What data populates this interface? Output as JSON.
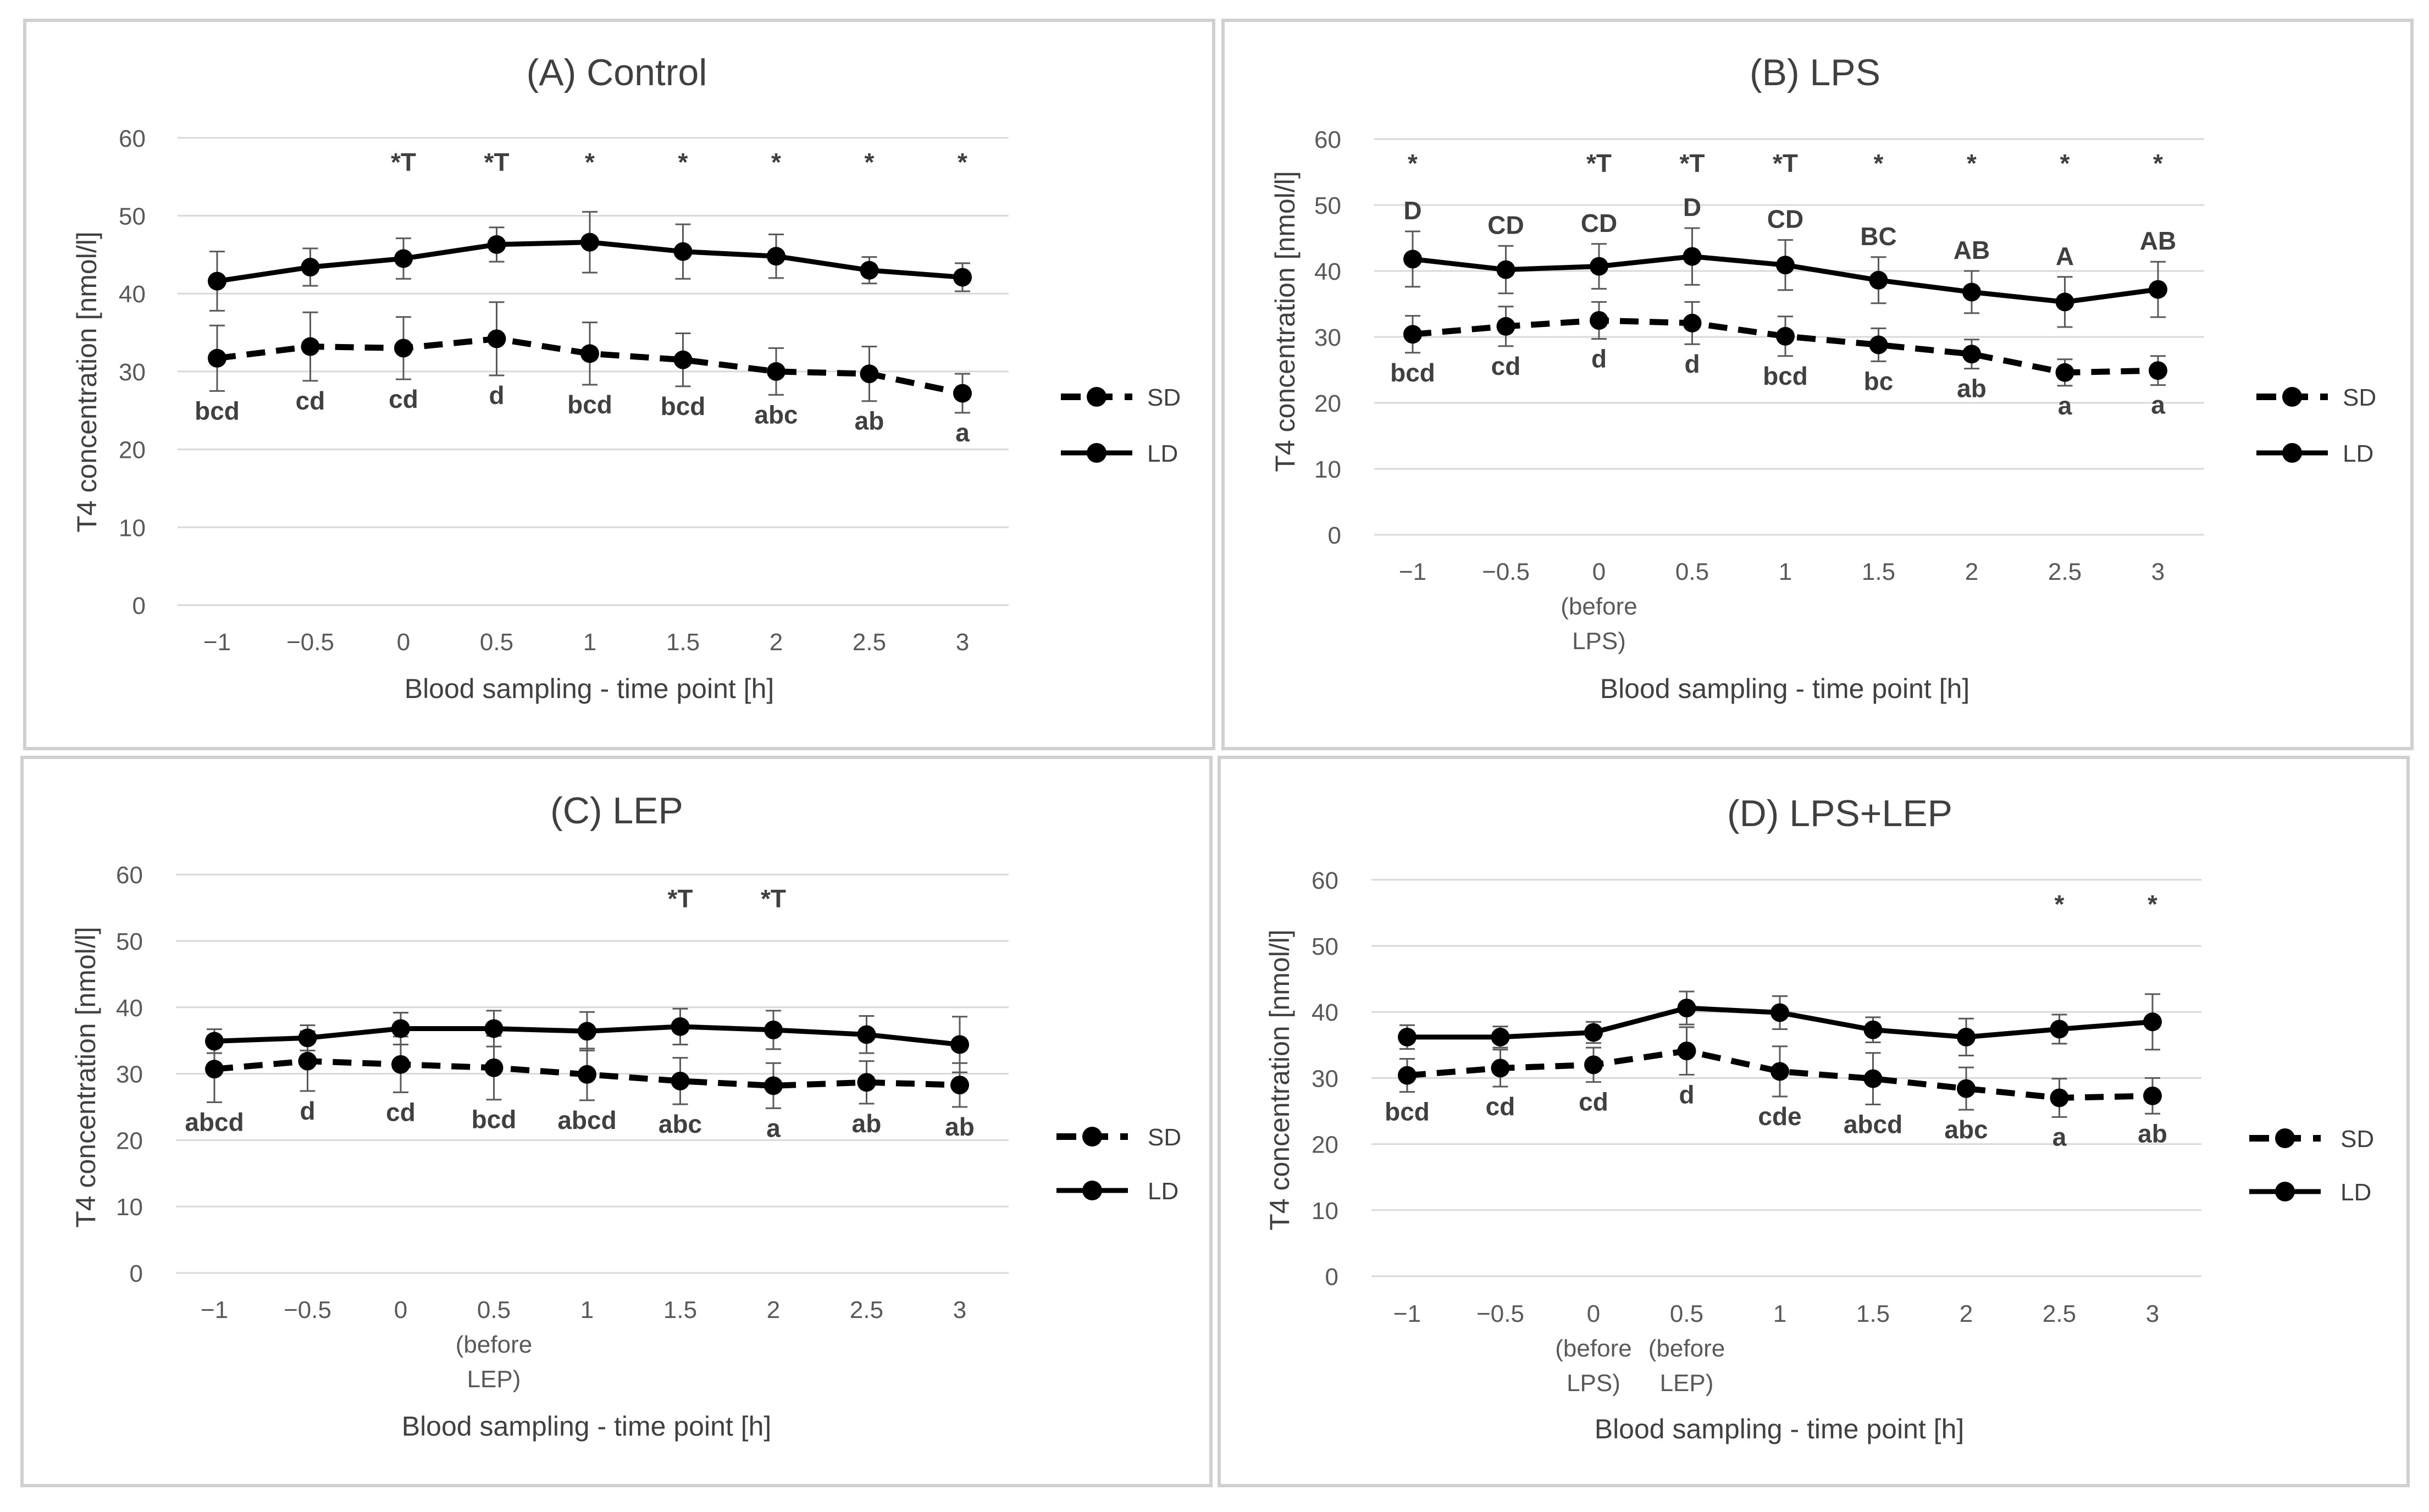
{
  "chart_data": [
    {
      "type": "line",
      "title": "(A) Control",
      "xlabel": "Blood sampling - time point [h]",
      "ylabel": "T4 concentration [nmol/l]",
      "ylim": [
        0,
        60
      ],
      "yticks": [
        "0",
        "10",
        "20",
        "30",
        "40",
        "50",
        "60"
      ],
      "categories": [
        "−1",
        "−0.5",
        "0",
        "0.5",
        "1",
        "1.5",
        "2",
        "2.5",
        "3"
      ],
      "category_notes": [],
      "legend": [
        "SD",
        "LD"
      ],
      "series": [
        {
          "name": "SD",
          "style": "dashed",
          "values": [
            31.7,
            33.2,
            33.0,
            34.2,
            32.3,
            31.5,
            30.0,
            29.7,
            27.2
          ],
          "errors": [
            4.2,
            4.4,
            4.0,
            4.7,
            4.0,
            3.4,
            3.0,
            3.5,
            2.5
          ]
        },
        {
          "name": "LD",
          "style": "solid",
          "values": [
            41.6,
            43.4,
            44.5,
            46.3,
            46.6,
            45.4,
            44.8,
            43.0,
            42.1
          ],
          "errors": [
            3.8,
            2.4,
            2.6,
            2.2,
            3.9,
            3.5,
            2.8,
            1.7,
            1.8
          ]
        }
      ],
      "top_labels": [
        "",
        "",
        "*T",
        "*T",
        "*",
        "*",
        "*",
        "*",
        "*"
      ],
      "ld_labels": [],
      "sd_labels": [
        "bcd",
        "cd",
        "cd",
        "d",
        "bcd",
        "bcd",
        "abc",
        "ab",
        "a"
      ]
    },
    {
      "type": "line",
      "title": "(B) LPS",
      "xlabel": "Blood sampling - time point [h]",
      "ylabel": "T4 concentration [nmol/l]",
      "ylim": [
        0,
        60
      ],
      "yticks": [
        "0",
        "10",
        "20",
        "30",
        "40",
        "50",
        "60"
      ],
      "categories": [
        "−1",
        "−0.5",
        "0",
        "0.5",
        "1",
        "1.5",
        "2",
        "2.5",
        "3"
      ],
      "category_notes": [
        {
          "index": 2,
          "lines": [
            "(before",
            "LPS)"
          ]
        }
      ],
      "legend": [
        "SD",
        "LD"
      ],
      "series": [
        {
          "name": "SD",
          "style": "dashed",
          "values": [
            30.4,
            31.6,
            32.5,
            32.1,
            30.1,
            28.8,
            27.4,
            24.6,
            24.9
          ],
          "errors": [
            2.8,
            3.0,
            2.8,
            3.2,
            3.0,
            2.5,
            2.2,
            2.0,
            2.2
          ]
        },
        {
          "name": "LD",
          "style": "solid",
          "values": [
            41.8,
            40.2,
            40.7,
            42.2,
            40.9,
            38.6,
            36.8,
            35.3,
            37.2
          ],
          "errors": [
            4.2,
            3.6,
            3.4,
            4.3,
            3.8,
            3.5,
            3.2,
            3.8,
            4.2
          ]
        }
      ],
      "top_labels": [
        "*",
        "",
        "*T",
        "*T",
        "*T",
        "*",
        "*",
        "*",
        "*"
      ],
      "ld_labels": [
        "D",
        "CD",
        "CD",
        "D",
        "CD",
        "BC",
        "AB",
        "A",
        "AB"
      ],
      "sd_labels": [
        "bcd",
        "cd",
        "d",
        "d",
        "bcd",
        "bc",
        "ab",
        "a",
        "a"
      ]
    },
    {
      "type": "line",
      "title": "(C) LEP",
      "xlabel": "Blood sampling - time point [h]",
      "ylabel": "T4 concentration [nmol/l]",
      "ylim": [
        0,
        60
      ],
      "yticks": [
        "0",
        "10",
        "20",
        "30",
        "40",
        "50",
        "60"
      ],
      "categories": [
        "−1",
        "−0.5",
        "0",
        "0.5",
        "1",
        "1.5",
        "2",
        "2.5",
        "3"
      ],
      "category_notes": [
        {
          "index": 3,
          "lines": [
            "(before",
            "LEP)"
          ]
        }
      ],
      "legend": [
        "SD",
        "LD"
      ],
      "series": [
        {
          "name": "SD",
          "style": "dashed",
          "values": [
            30.7,
            31.9,
            31.4,
            30.9,
            29.9,
            28.9,
            28.2,
            28.7,
            28.3
          ],
          "errors": [
            5.0,
            4.5,
            4.2,
            4.8,
            3.9,
            3.5,
            3.4,
            3.2,
            3.3
          ]
        },
        {
          "name": "LD",
          "style": "solid",
          "values": [
            34.9,
            35.4,
            36.8,
            36.8,
            36.4,
            37.1,
            36.6,
            35.9,
            34.4
          ],
          "errors": [
            1.8,
            1.9,
            2.4,
            2.7,
            2.9,
            2.7,
            2.9,
            2.8,
            4.2
          ]
        }
      ],
      "top_labels": [
        "",
        "",
        "",
        "",
        "",
        "*T",
        "*T",
        "",
        ""
      ],
      "ld_labels": [],
      "sd_labels": [
        "abcd",
        "d",
        "cd",
        "bcd",
        "abcd",
        "abc",
        "a",
        "ab",
        "ab"
      ]
    },
    {
      "type": "line",
      "title": "(D) LPS+LEP",
      "xlabel": "Blood sampling - time point [h]",
      "ylabel": "T4 concentration [nmol/l]",
      "ylim": [
        0,
        60
      ],
      "yticks": [
        "0",
        "10",
        "20",
        "30",
        "40",
        "50",
        "60"
      ],
      "categories": [
        "−1",
        "−0.5",
        "0",
        "0.5",
        "1",
        "1.5",
        "2",
        "2.5",
        "3"
      ],
      "category_notes": [
        {
          "index": 2,
          "lines": [
            "(before",
            "LPS)"
          ]
        },
        {
          "index": 3,
          "lines": [
            "(before",
            "LEP)"
          ]
        }
      ],
      "legend": [
        "SD",
        "LD"
      ],
      "series": [
        {
          "name": "SD",
          "style": "dashed",
          "values": [
            30.4,
            31.5,
            32.0,
            34.1,
            31.0,
            29.9,
            28.4,
            27.0,
            27.3
          ],
          "errors": [
            2.5,
            2.8,
            2.6,
            3.6,
            3.8,
            3.9,
            3.2,
            2.9,
            2.7
          ]
        },
        {
          "name": "LD",
          "style": "solid",
          "values": [
            36.2,
            36.2,
            36.9,
            40.6,
            39.9,
            37.3,
            36.2,
            37.4,
            38.5
          ],
          "errors": [
            1.8,
            1.6,
            1.6,
            2.5,
            2.5,
            1.9,
            2.8,
            2.2,
            4.2
          ]
        }
      ],
      "top_labels": [
        "",
        "",
        "",
        "",
        "",
        "",
        "",
        "*",
        "*"
      ],
      "ld_labels": [],
      "sd_labels": [
        "bcd",
        "cd",
        "cd",
        "d",
        "cde",
        "abcd",
        "abc",
        "a",
        "ab"
      ]
    }
  ]
}
